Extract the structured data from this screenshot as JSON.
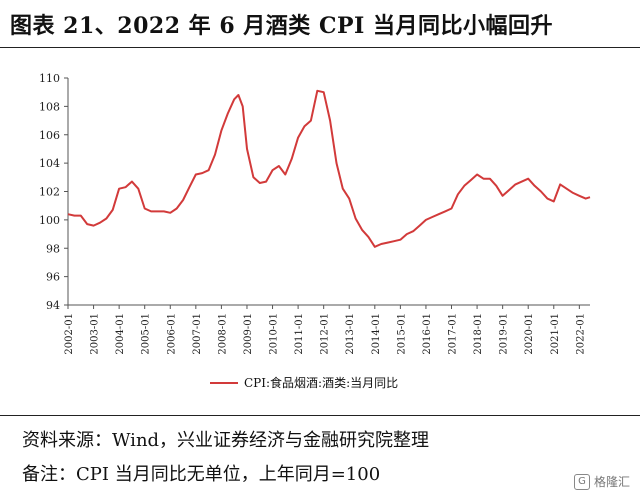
{
  "title": "图表 21、2022 年 6 月酒类 CPI 当月同比小幅回升",
  "source_note": "资料来源：Wind，兴业证券经济与金融研究院整理",
  "remark_note": "备注：CPI 当月同比无单位，上年同月=100",
  "watermark": {
    "text": "格隆汇",
    "icon": "brand-logo-icon"
  },
  "chart_data": {
    "type": "line",
    "ylim": [
      94,
      110
    ],
    "yticks": [
      94,
      96,
      98,
      100,
      102,
      104,
      106,
      108,
      110
    ],
    "xlim": [
      "2002-01",
      "2022-06"
    ],
    "xticks": [
      "2002-01",
      "2003-01",
      "2004-01",
      "2005-01",
      "2006-01",
      "2007-01",
      "2008-01",
      "2009-01",
      "2010-01",
      "2011-01",
      "2012-01",
      "2013-01",
      "2014-01",
      "2015-01",
      "2016-01",
      "2017-01",
      "2018-01",
      "2019-01",
      "2020-01",
      "2021-01",
      "2022-01"
    ],
    "grid": false,
    "legend_position": "bottom",
    "series": [
      {
        "name": "CPI:食品烟酒:酒类:当月同比",
        "color": "#d23a3a",
        "points": [
          [
            "2002-01",
            100.4
          ],
          [
            "2002-04",
            100.3
          ],
          [
            "2002-07",
            100.3
          ],
          [
            "2002-10",
            99.7
          ],
          [
            "2003-01",
            99.6
          ],
          [
            "2003-04",
            99.8
          ],
          [
            "2003-07",
            100.1
          ],
          [
            "2003-10",
            100.7
          ],
          [
            "2004-01",
            102.2
          ],
          [
            "2004-04",
            102.3
          ],
          [
            "2004-07",
            102.7
          ],
          [
            "2004-10",
            102.2
          ],
          [
            "2005-01",
            100.8
          ],
          [
            "2005-04",
            100.6
          ],
          [
            "2005-07",
            100.6
          ],
          [
            "2005-10",
            100.6
          ],
          [
            "2006-01",
            100.5
          ],
          [
            "2006-04",
            100.8
          ],
          [
            "2006-07",
            101.4
          ],
          [
            "2006-10",
            102.3
          ],
          [
            "2007-01",
            103.2
          ],
          [
            "2007-04",
            103.3
          ],
          [
            "2007-07",
            103.5
          ],
          [
            "2007-10",
            104.6
          ],
          [
            "2008-01",
            106.3
          ],
          [
            "2008-04",
            107.5
          ],
          [
            "2008-07",
            108.5
          ],
          [
            "2008-09",
            108.8
          ],
          [
            "2008-11",
            108.0
          ],
          [
            "2009-01",
            105.0
          ],
          [
            "2009-04",
            103.0
          ],
          [
            "2009-07",
            102.6
          ],
          [
            "2009-10",
            102.7
          ],
          [
            "2010-01",
            103.5
          ],
          [
            "2010-04",
            103.8
          ],
          [
            "2010-07",
            103.2
          ],
          [
            "2010-10",
            104.3
          ],
          [
            "2011-01",
            105.8
          ],
          [
            "2011-04",
            106.6
          ],
          [
            "2011-07",
            107.0
          ],
          [
            "2011-10",
            109.1
          ],
          [
            "2012-01",
            109.0
          ],
          [
            "2012-04",
            107.0
          ],
          [
            "2012-07",
            104.0
          ],
          [
            "2012-10",
            102.2
          ],
          [
            "2013-01",
            101.5
          ],
          [
            "2013-04",
            100.1
          ],
          [
            "2013-07",
            99.3
          ],
          [
            "2013-10",
            98.8
          ],
          [
            "2014-01",
            98.1
          ],
          [
            "2014-04",
            98.3
          ],
          [
            "2014-07",
            98.4
          ],
          [
            "2014-10",
            98.5
          ],
          [
            "2015-01",
            98.6
          ],
          [
            "2015-04",
            99.0
          ],
          [
            "2015-07",
            99.2
          ],
          [
            "2015-10",
            99.6
          ],
          [
            "2016-01",
            100.0
          ],
          [
            "2016-04",
            100.2
          ],
          [
            "2016-07",
            100.4
          ],
          [
            "2016-10",
            100.6
          ],
          [
            "2017-01",
            100.8
          ],
          [
            "2017-04",
            101.8
          ],
          [
            "2017-07",
            102.4
          ],
          [
            "2017-10",
            102.8
          ],
          [
            "2018-01",
            103.2
          ],
          [
            "2018-04",
            102.9
          ],
          [
            "2018-07",
            102.9
          ],
          [
            "2018-10",
            102.4
          ],
          [
            "2019-01",
            101.7
          ],
          [
            "2019-04",
            102.1
          ],
          [
            "2019-07",
            102.5
          ],
          [
            "2019-10",
            102.7
          ],
          [
            "2020-01",
            102.9
          ],
          [
            "2020-04",
            102.4
          ],
          [
            "2020-07",
            102.0
          ],
          [
            "2020-10",
            101.5
          ],
          [
            "2021-01",
            101.3
          ],
          [
            "2021-04",
            102.5
          ],
          [
            "2021-07",
            102.2
          ],
          [
            "2021-10",
            101.9
          ],
          [
            "2022-01",
            101.7
          ],
          [
            "2022-04",
            101.5
          ],
          [
            "2022-06",
            101.6
          ]
        ]
      }
    ]
  }
}
